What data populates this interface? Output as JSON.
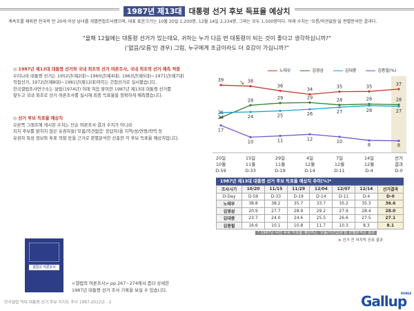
{
  "header": {
    "tag": "1987년 제13대",
    "title": "대통령 선거 후보 득표율 예상치"
  },
  "intro": "계속조를 제외한 전국의 만 20세 이상 남녀를 개별면접조사했으며, 대표 표본크기는 10월 20일 1,200명, 12월 14일 2,234명, 그외는 모두 1,500명이다. 아래 수치는 '모름/의견없음'을 판별분석한 결과다.",
  "question": {
    "line1": "\"올해 12월에는 대통령 선거가 있는데요, 귀하는 누가 다음 번 대통령이 되는 것이 좋다고 생각하십니까?\"",
    "line2": "('없음/모름'인 경우) 그럼, 누구에게 조금이라도 더 호감이 가십니까?\""
  },
  "sections": [
    {
      "bullet": "◎",
      "head": "1987년 제13대 대통령 선거와 국내 최초의 선거 여론조사, 국내 최초의 선거 예측 적중",
      "body": [
        "우리나라 대통령 선거는 1952년(제2대)~1960년(제4대), 1963년(제5대)~1971년(제7대)",
        "직접선거, 1972년(제8대)~1981년(제12대)까지는 간접선거로 실시됐습니다.",
        "한국갤럽조사연구소는 설립(1974년) 이래 처음 맞이한 1987년 제13대 대통령 선거를",
        "앞두고 국내 최초로 선거 여론조사를 실시해 최종 득표율을 정확하게 예측했습니다."
      ]
    },
    {
      "bullet": "◎",
      "head": "선거 후보 득표율 예상치",
      "body": [
        "오른쪽 그래프에 게시된 수치는 단순 여론조사 결과 수치가 아니라",
        "지지 후보를 밝히지 않은 유권자들('모름/의견없음' 응답자)을 지역/성/연령/학력 등",
        "유권자 특성 정보와 투표 의향 등을 근거로 판별분석한 산출한 각 후보 득표율 예상치입니다."
      ]
    }
  ],
  "chart_data": {
    "type": "line",
    "x": [
      "10/20",
      "11/15",
      "11/29",
      "12/04",
      "12/07",
      "12/14",
      "선거결과"
    ],
    "x_labels_top": [
      "20일",
      "15일",
      "29일",
      "4일",
      "7일",
      "14일",
      "선거"
    ],
    "x_labels_mid": [
      "10월",
      "11월",
      "11월",
      "12월",
      "12월",
      "12월",
      "결과"
    ],
    "x_labels_dday": [
      "D-59",
      "D-33",
      "D-19",
      "D-14",
      "D-11",
      "D-4",
      "D-0"
    ],
    "series": [
      {
        "name": "노태우",
        "color": "#c0392b",
        "values": [
          38.8,
          38.2,
          35.7,
          33.7,
          35.2,
          35.3,
          36.6
        ]
      },
      {
        "name": "김영삼",
        "color": "#2e7d32",
        "values": [
          20.9,
          27.7,
          28.9,
          29.2,
          27.9,
          28.4,
          28.0
        ]
      },
      {
        "name": "김대중",
        "color": "#1f9fcf",
        "values": [
          23.7,
          24.0,
          24.6,
          25.5,
          26.6,
          27.5,
          27.1
        ]
      },
      {
        "name": "김종필(%)",
        "color": "#6a5acd",
        "values": [
          16.6,
          10.1,
          10.8,
          11.7,
          10.3,
          8.3,
          8.1
        ]
      }
    ],
    "point_labels": [
      [
        "39",
        "38",
        "36",
        "34",
        "35",
        "35",
        "37"
      ],
      [
        "21",
        "28",
        "29",
        "29",
        "28",
        "28",
        "28"
      ],
      [
        "24",
        "24",
        "25",
        "26",
        "27",
        "28",
        "27"
      ],
      [
        "17",
        "10",
        "11",
        "12",
        "10",
        "8",
        "8"
      ]
    ],
    "ylim": [
      0,
      50
    ],
    "legend": "top"
  },
  "table": {
    "title": "1987년 제13대 대통령 선거 후보 득표율 예상치 추이(%)*",
    "header_label": "조사시기",
    "dday_label": "D-Day",
    "columns": [
      "10/20",
      "11/15",
      "11/29",
      "12/04",
      "12/07",
      "12/14",
      "선거결과"
    ],
    "ddays": [
      "D-59",
      "D-33",
      "D-19",
      "D-14",
      "D-11",
      "D-4",
      "D-0"
    ],
    "rows": [
      {
        "name": "노태우",
        "values": [
          "38.8",
          "38.2",
          "35.7",
          "33.7",
          "35.2",
          "35.3",
          "36.6"
        ]
      },
      {
        "name": "김영삼",
        "values": [
          "20.9",
          "27.7",
          "28.9",
          "29.2",
          "27.9",
          "28.4",
          "28.0"
        ]
      },
      {
        "name": "김대중",
        "values": [
          "23.7",
          "24.0",
          "24.6",
          "25.5",
          "26.6",
          "27.5",
          "27.1"
        ]
      },
      {
        "name": "김종필",
        "values": [
          "16.6",
          "10.1",
          "10.8",
          "11.7",
          "10.3",
          "8.3",
          "8.1"
        ]
      }
    ]
  },
  "notes": {
    "n1": "* 1987년 대선 후보 득표율 예상치는 '모름/의견없음'을 판별분석한 결과",
    "n2": "선거 전 마지막 공표 결과"
  },
  "book": {
    "title": "갤럽의 여론조사"
  },
  "caption": [
    "<갤럽의 여론조사> pp.267~274에서 좀더 상세한",
    "1987년 대통령 선거 조사 기록을 보실 수 있습니다."
  ],
  "footer": "한국갤럽 역대 대통령 선거 후보 지지도 추이 1987-2012년 - 2",
  "logo": {
    "text": "Gallup",
    "sub": "KOREA"
  }
}
